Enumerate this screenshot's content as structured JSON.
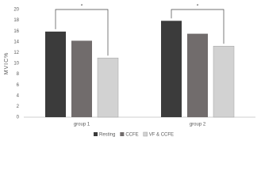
{
  "chart_data": {
    "type": "bar",
    "y_label": "MVIC%",
    "categories": [
      "group 1",
      "group 2"
    ],
    "series": [
      {
        "name": "Resting",
        "color": "#3b3b3b",
        "values": [
          15.9,
          17.9
        ]
      },
      {
        "name": "CCFE",
        "color": "#716c6c",
        "values": [
          14.2,
          15.5
        ]
      },
      {
        "name": "VF & CCFE",
        "color": "#d2d2d2",
        "values": [
          11.0,
          13.2
        ]
      }
    ],
    "ylim": [
      0,
      20
    ],
    "yticks": [
      0,
      2,
      4,
      6,
      8,
      10,
      12,
      14,
      16,
      18,
      20
    ],
    "annotations": [
      "*",
      "*"
    ],
    "legend": "bottom"
  }
}
